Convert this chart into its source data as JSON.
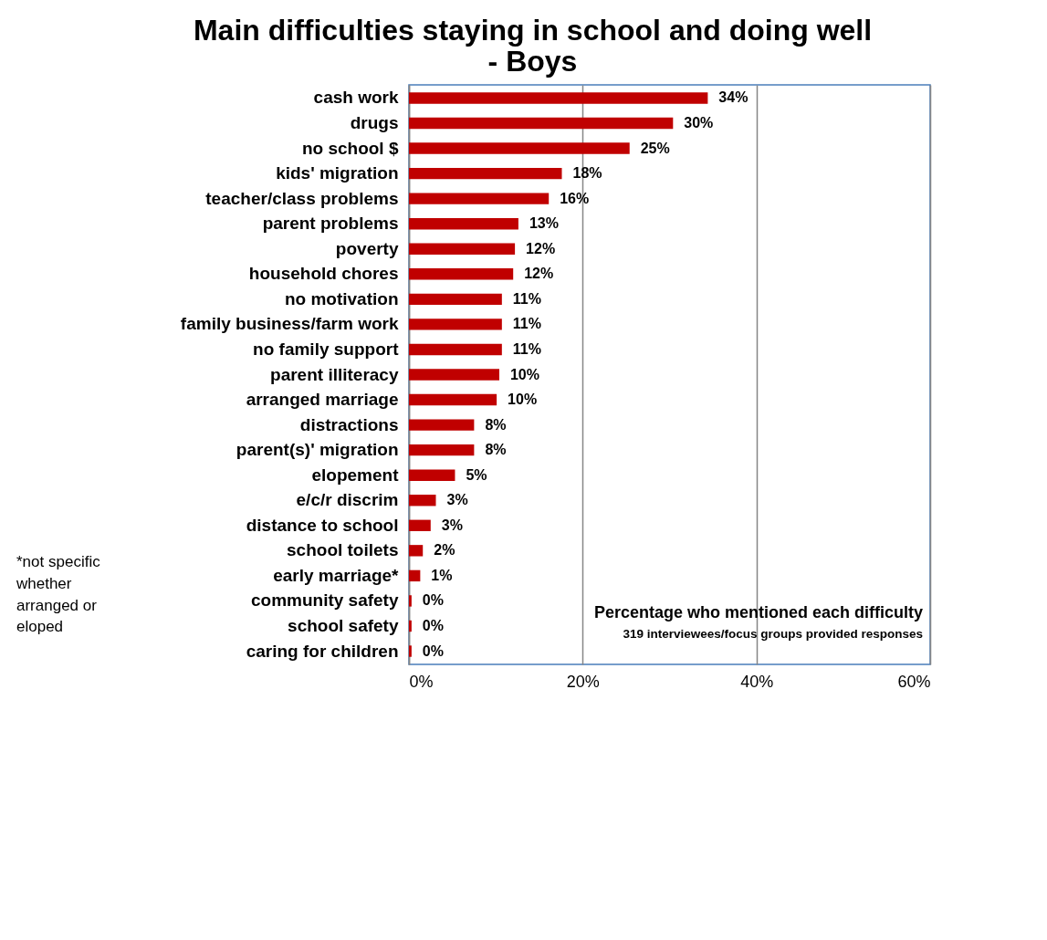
{
  "chart_data": {
    "type": "bar",
    "orientation": "horizontal",
    "title": "Main difficulties staying in school and doing well - Boys",
    "categories": [
      "cash work",
      "drugs",
      "no school $",
      "kids' migration",
      "teacher/class problems",
      "parent problems",
      "poverty",
      "household chores",
      "no motivation",
      "family business/farm work",
      "no family support",
      "parent illiteracy",
      "arranged marriage",
      "distractions",
      "parent(s)' migration",
      "elopement ",
      "e/c/r discrim",
      "distance to school",
      "school toilets",
      "early marriage*",
      "community safety",
      "school safety ",
      "caring for children"
    ],
    "values": [
      34.4,
      30.4,
      25.4,
      17.6,
      16.1,
      12.6,
      12.2,
      12.0,
      10.7,
      10.7,
      10.7,
      10.4,
      10.1,
      7.5,
      7.5,
      5.3,
      3.1,
      2.5,
      1.6,
      1.3,
      0.3,
      0.3,
      0.3
    ],
    "value_labels": [
      "34%",
      "30%",
      "25%",
      "18%",
      "16%",
      "13%",
      "12%",
      "12%",
      "11%",
      "11%",
      "11%",
      "10%",
      "10%",
      "8%",
      "8%",
      "5%",
      "3%",
      "3%",
      "2%",
      "1%",
      "0%",
      "0%",
      "0%"
    ],
    "color": "#c00000",
    "xlim": [
      0,
      60
    ],
    "xticks": [
      {
        "value": 0,
        "label": "0%"
      },
      {
        "value": 20,
        "label": "20%"
      },
      {
        "value": 40,
        "label": "40%"
      },
      {
        "value": 60,
        "label": "60%"
      }
    ],
    "grid": "x",
    "annotations": [
      "Percentage who mentioned each difficulty",
      "319 interviewees/focus groups provided responses",
      "*not specific whether arranged or eloped"
    ]
  }
}
